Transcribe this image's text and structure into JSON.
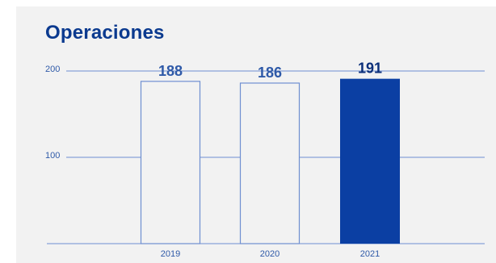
{
  "chart_data": {
    "type": "bar",
    "title": "Operaciones",
    "categories": [
      "2019",
      "2020",
      "2021"
    ],
    "values": [
      188,
      186,
      191
    ],
    "data_labels": [
      "188",
      "186",
      "191"
    ],
    "yticks": [
      100,
      200
    ],
    "ytick_labels": [
      "100",
      "200"
    ],
    "ylim": [
      0,
      200
    ],
    "xlabel": "",
    "ylabel": "",
    "grid": true,
    "legend": "none",
    "highlight_index": 2,
    "colors": {
      "background": "#f2f2f2",
      "axis": "#6f8fd1",
      "bar_outline": "#6f8fd1",
      "bar_fill": "#f2f2f2",
      "highlight": "#0b3fa3",
      "title": "#0b3a8f",
      "label": "#2f5aa8",
      "highlight_label": "#0b2f7a"
    }
  }
}
